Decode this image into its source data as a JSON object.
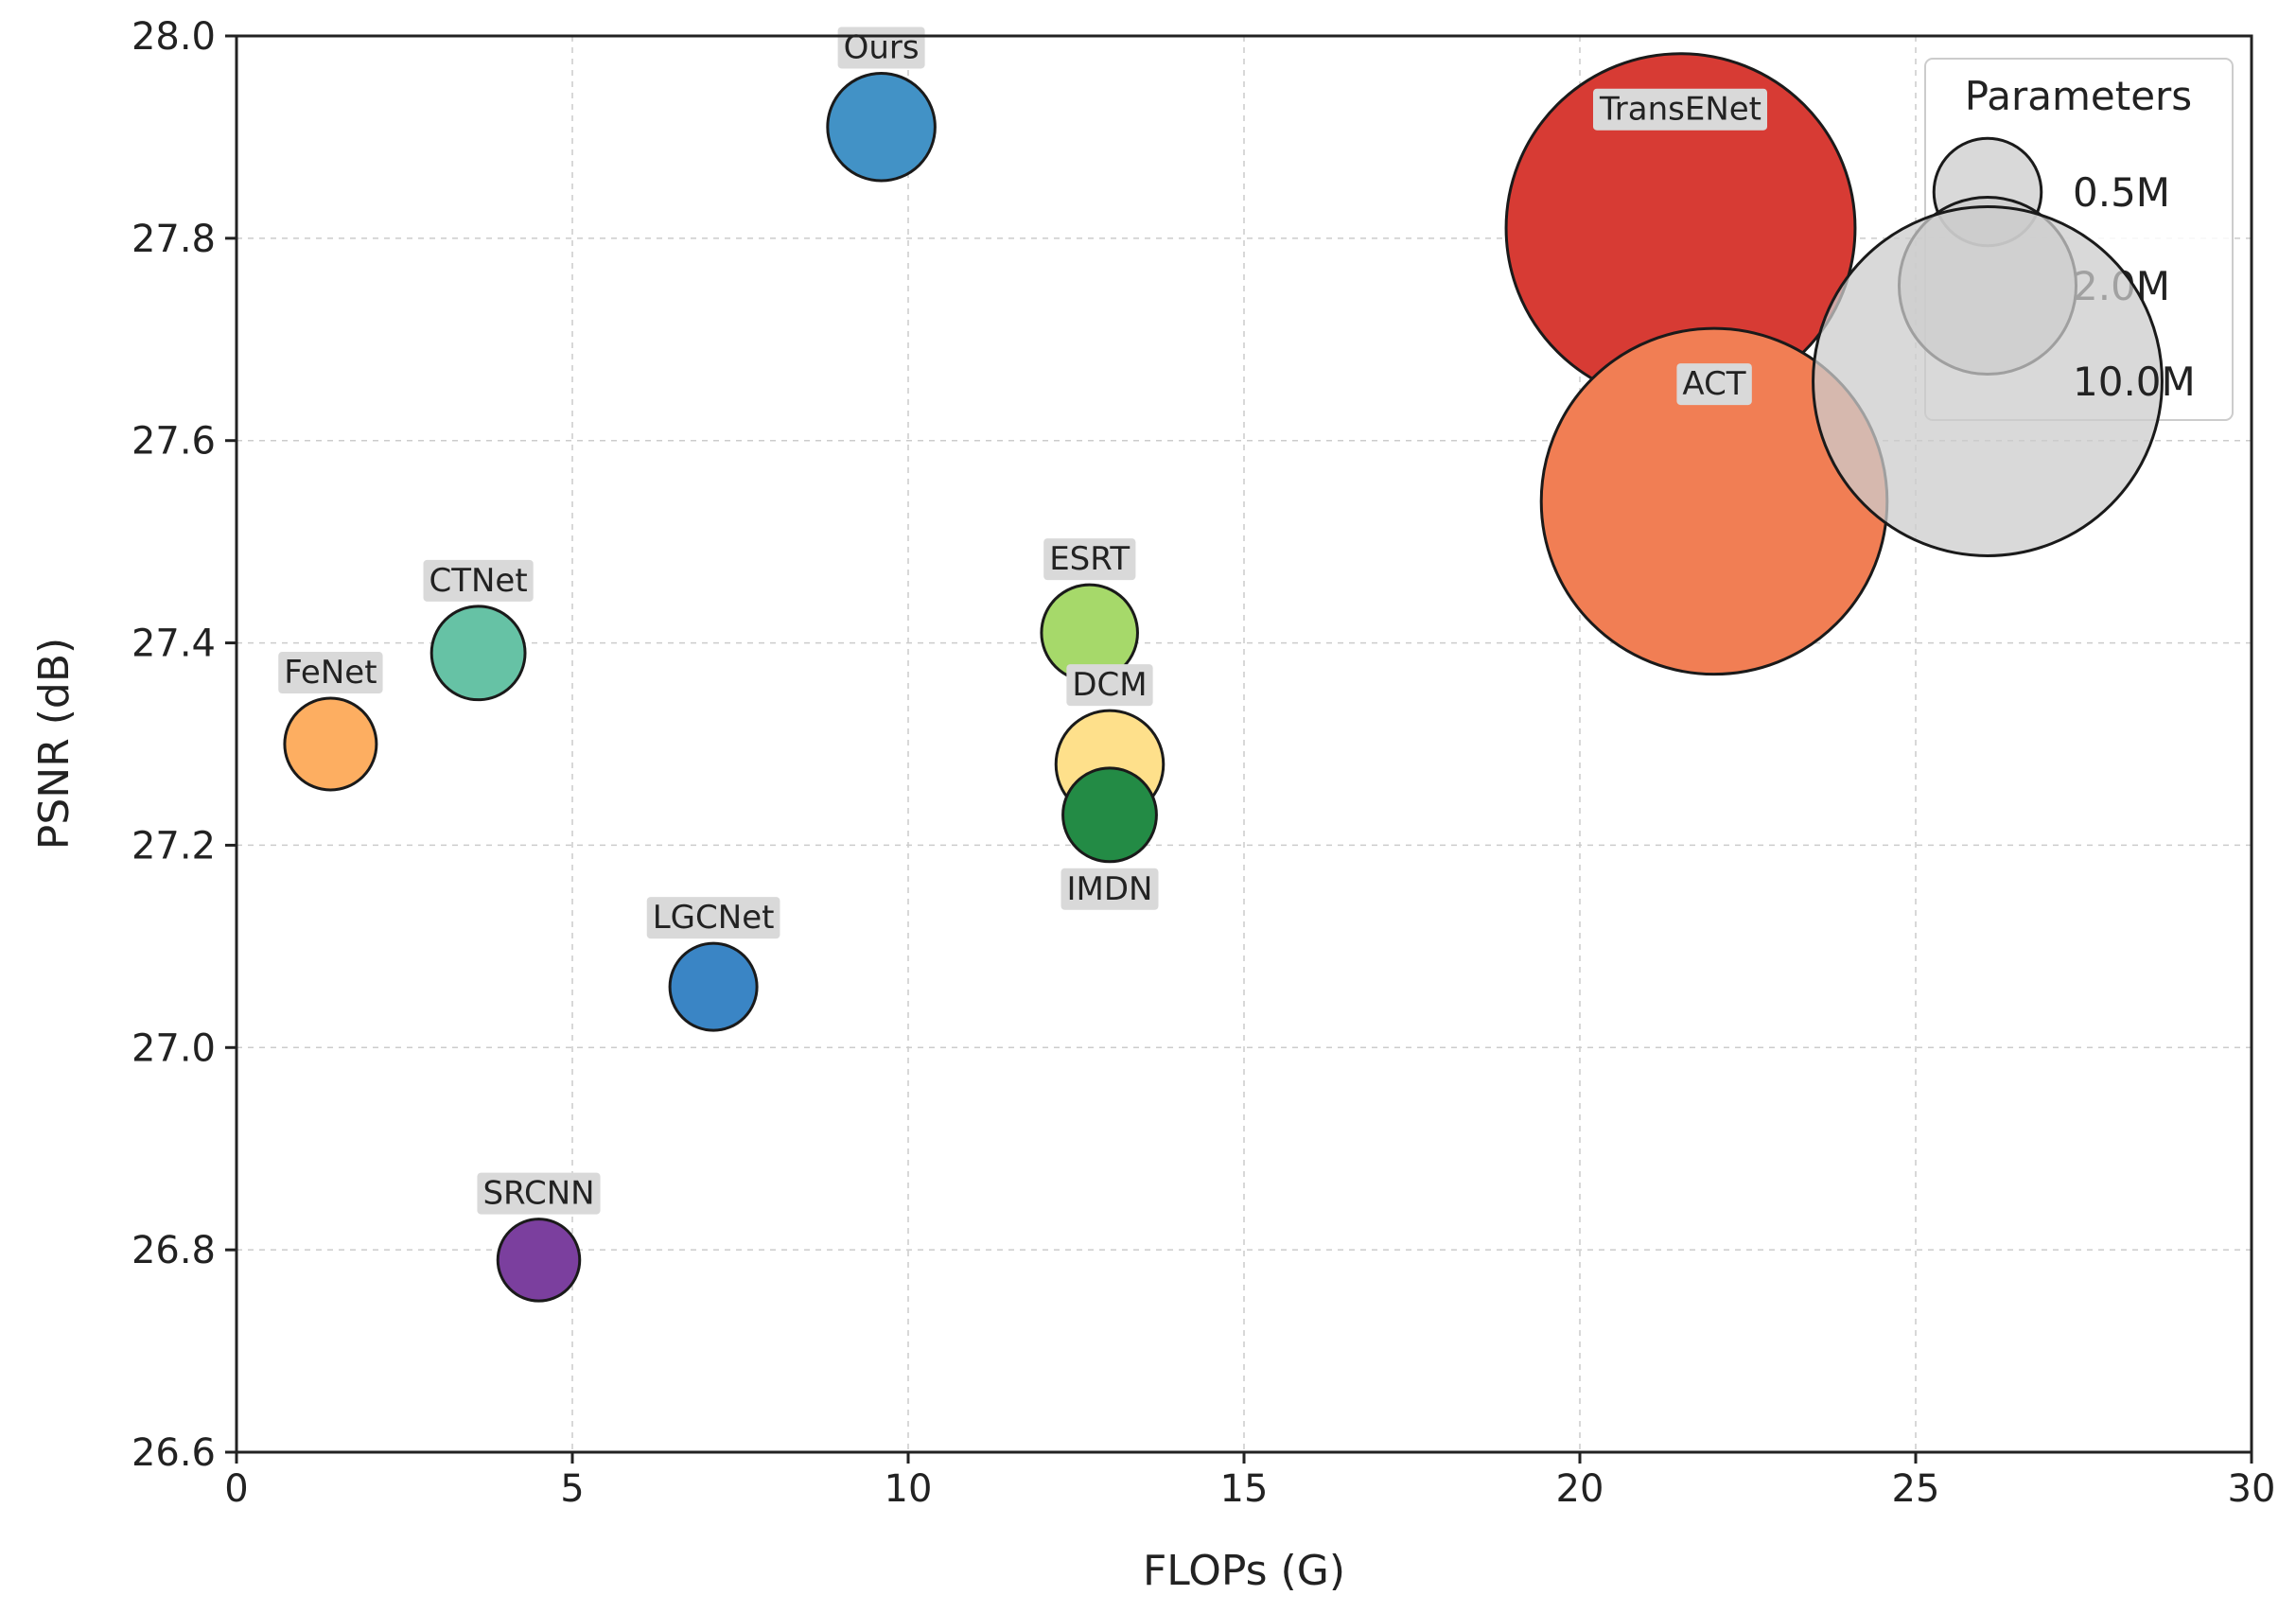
{
  "chart_data": {
    "type": "scatter",
    "xlabel": "FLOPs (G)",
    "ylabel": "PSNR (dB)",
    "xlim": [
      0,
      30
    ],
    "ylim": [
      26.6,
      28.0
    ],
    "xticks": [
      0,
      5,
      10,
      15,
      20,
      25,
      30
    ],
    "yticks": [
      26.6,
      26.8,
      27.0,
      27.2,
      27.4,
      27.6,
      27.8,
      28.0
    ],
    "xtick_labels": [
      "0",
      "5",
      "10",
      "15",
      "20",
      "25",
      "30"
    ],
    "ytick_labels": [
      "26.6",
      "26.8",
      "27.0",
      "27.2",
      "27.4",
      "27.6",
      "27.8",
      "28.0"
    ],
    "grid": true,
    "points": [
      {
        "name": "Ours",
        "flops": 9.6,
        "psnr": 27.91,
        "params_m": 0.5,
        "color": "#4292c6",
        "label_pos": "above"
      },
      {
        "name": "TransENet",
        "flops": 21.5,
        "psnr": 27.81,
        "params_m": 10.0,
        "color": "#d73b34",
        "label_pos": "inside-top"
      },
      {
        "name": "ACT",
        "flops": 22.0,
        "psnr": 27.54,
        "params_m": 9.8,
        "color": "#f17e54",
        "label_pos": "inside-top"
      },
      {
        "name": "ESRT",
        "flops": 12.7,
        "psnr": 27.41,
        "params_m": 0.35,
        "color": "#a6d96a",
        "label_pos": "above"
      },
      {
        "name": "CTNet",
        "flops": 3.6,
        "psnr": 27.39,
        "params_m": 0.32,
        "color": "#66c2a5",
        "label_pos": "above"
      },
      {
        "name": "FeNet",
        "flops": 1.4,
        "psnr": 27.3,
        "params_m": 0.3,
        "color": "#fdae61",
        "label_pos": "above"
      },
      {
        "name": "IMDN",
        "flops": 13.0,
        "psnr": 27.23,
        "params_m": 0.32,
        "color": "#238b45",
        "label_pos": "below"
      },
      {
        "name": "DCM",
        "flops": 13.0,
        "psnr": 27.28,
        "params_m": 0.5,
        "color": "#fee08b",
        "label_pos": "above"
      },
      {
        "name": "LGCNet",
        "flops": 7.1,
        "psnr": 27.06,
        "params_m": 0.25,
        "color": "#3a85c5",
        "label_pos": "above"
      },
      {
        "name": "SRCNN",
        "flops": 4.5,
        "psnr": 26.79,
        "params_m": 0.2,
        "color": "#7b3f9e",
        "label_pos": "above"
      }
    ],
    "legend": {
      "title": "Parameters",
      "placement": "top-right",
      "entries": [
        {
          "label": "0.5M",
          "params_m": 0.5
        },
        {
          "label": "2.0M",
          "params_m": 2.0
        },
        {
          "label": "10.0M",
          "params_m": 10.0
        }
      ]
    }
  }
}
